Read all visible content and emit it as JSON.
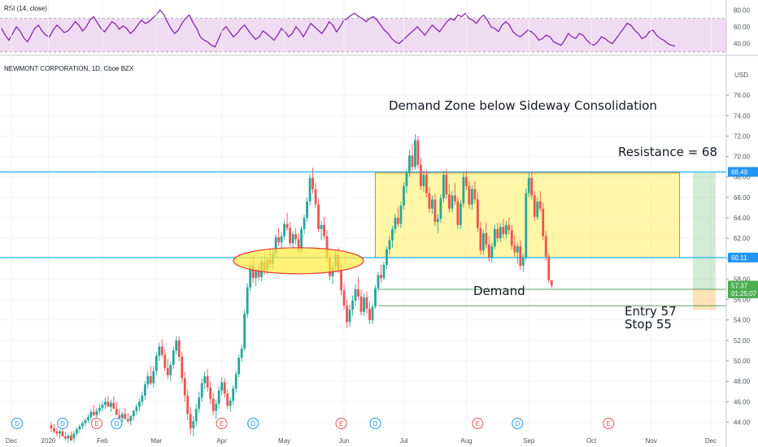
{
  "rsi_panel": {
    "label": "RSI (14, close)",
    "ticks": [
      80,
      60,
      40
    ],
    "tick_labels": [
      "80.00",
      "60.00",
      "40.00"
    ],
    "band": [
      30,
      70
    ],
    "range": [
      28,
      88
    ],
    "values": [
      58,
      50,
      44,
      52,
      60,
      55,
      47,
      42,
      50,
      58,
      62,
      55,
      50,
      48,
      56,
      62,
      58,
      53,
      55,
      60,
      66,
      62,
      55,
      60,
      68,
      72,
      65,
      58,
      54,
      60,
      66,
      63,
      57,
      61,
      58,
      52,
      56,
      62,
      68,
      64,
      66,
      70,
      74,
      80,
      75,
      66,
      58,
      52,
      56,
      64,
      70,
      74,
      65,
      58,
      48,
      44,
      42,
      38,
      36,
      46,
      56,
      60,
      54,
      48,
      52,
      58,
      62,
      56,
      50,
      45,
      48,
      55,
      52,
      48,
      44,
      50,
      58,
      54,
      48,
      52,
      60,
      55,
      48,
      56,
      64,
      60,
      56,
      52,
      58,
      66,
      62,
      54,
      60,
      68,
      70,
      74,
      76,
      72,
      70,
      66,
      70,
      72,
      68,
      62,
      56,
      52,
      46,
      42,
      40,
      44,
      48,
      52,
      56,
      60,
      55,
      50,
      56,
      62,
      58,
      54,
      60,
      66,
      70,
      68,
      74,
      72,
      76,
      70,
      68,
      64,
      70,
      74,
      68,
      60,
      58,
      54,
      62,
      66,
      62,
      54,
      50,
      48,
      52,
      56,
      54,
      50,
      44,
      46,
      50,
      48,
      42,
      40,
      38,
      44,
      52,
      48,
      46,
      52,
      50,
      44,
      40,
      38,
      42,
      48,
      46,
      42,
      40,
      46,
      52,
      58,
      64,
      62,
      56,
      52,
      46,
      48,
      54,
      56,
      50,
      46,
      44,
      40,
      38,
      37
    ]
  },
  "main_chart": {
    "symbol_label": "NEWMONT CORPORATION, 1D, Cboe BZX",
    "currency": "USD",
    "price_ticks": [
      "76.00",
      "74.00",
      "72.00",
      "70.00",
      "68.00",
      "66.00",
      "64.00",
      "62.00",
      "60.00",
      "58.00",
      "56.00",
      "54.00",
      "52.00",
      "50.00",
      "48.00",
      "46.00",
      "44.00"
    ],
    "month_labels": [
      "Dec",
      "2020",
      "Feb",
      "Mar",
      "Apr",
      "May",
      "Jun",
      "Jul",
      "Aug",
      "Sep",
      "Oct",
      "Nov",
      "Dec"
    ],
    "event_markers": [
      {
        "text": "D",
        "date_index": 2,
        "color": "#2196f3"
      },
      {
        "text": "D",
        "date_index": 18,
        "color": "#2196f3"
      },
      {
        "text": "E",
        "date_index": 30,
        "color": "#ef5350"
      },
      {
        "text": "D",
        "date_index": 37,
        "color": "#2196f3"
      },
      {
        "text": "E",
        "date_index": 74,
        "color": "#ef5350"
      },
      {
        "text": "D",
        "date_index": 85,
        "color": "#2196f3"
      },
      {
        "text": "E",
        "date_index": 116,
        "color": "#ef5350"
      },
      {
        "text": "D",
        "date_index": 128,
        "color": "#2196f3"
      },
      {
        "text": "E",
        "date_index": 164,
        "color": "#ef5350"
      },
      {
        "text": "D",
        "date_index": 178,
        "color": "#2196f3"
      },
      {
        "text": "E",
        "date_index": 210,
        "color": "#ef5350"
      }
    ],
    "price_badges": [
      {
        "text": "68.49",
        "price": 68.49,
        "color": "#2196f3"
      },
      {
        "text": "60.11",
        "price": 60.11,
        "color": "#2196f3"
      },
      {
        "text": "57.37",
        "price": 57.37,
        "color": "#4caf50"
      },
      {
        "text": "01:25:07",
        "price": 56.6,
        "color": "#4caf50"
      }
    ]
  },
  "annotations": {
    "title": "Demand Zone below Sideway Consolidation",
    "resistance": "Resistance  = 68",
    "demand": "Demand",
    "entry": "Entry 57",
    "stop": "Stop 55"
  },
  "chart_data": {
    "type": "candlestick",
    "title": "Demand Zone below Sideway Consolidation",
    "y_range": [
      43,
      78
    ],
    "x_range": [
      0,
      250
    ],
    "resistance_line": 68.49,
    "support_line": 60.11,
    "demand_zone": [
      55.4,
      57.0
    ],
    "consolidation_box": {
      "start_index": 128,
      "end_index": 235,
      "top": 68.4,
      "bottom": 60.1
    },
    "target_zone": [
      57.0,
      68.4
    ],
    "stop_zone": [
      55.0,
      57.0
    ],
    "candles": [
      [
        43.7,
        44.0,
        43.0,
        43.4
      ],
      [
        43.4,
        43.8,
        42.9,
        43.1
      ],
      [
        43.1,
        43.5,
        42.6,
        42.9
      ],
      [
        42.9,
        43.3,
        42.4,
        43.1
      ],
      [
        43.1,
        43.6,
        42.7,
        42.6
      ],
      [
        42.6,
        43.0,
        42.2,
        42.4
      ],
      [
        42.4,
        42.8,
        42.0,
        42.7
      ],
      [
        42.7,
        43.1,
        42.3,
        42.2
      ],
      [
        42.4,
        43.2,
        42.0,
        42.9
      ],
      [
        42.9,
        43.5,
        42.6,
        43.3
      ],
      [
        43.3,
        43.8,
        42.9,
        43.6
      ],
      [
        43.6,
        44.1,
        43.3,
        43.9
      ],
      [
        43.9,
        44.4,
        43.6,
        44.2
      ],
      [
        44.2,
        44.8,
        43.9,
        44.5
      ],
      [
        44.5,
        45.3,
        44.2,
        45.0
      ],
      [
        45.0,
        45.7,
        44.6,
        44.7
      ],
      [
        44.7,
        45.4,
        44.3,
        45.1
      ],
      [
        45.1,
        45.8,
        44.8,
        45.4
      ],
      [
        45.4,
        46.0,
        45.0,
        45.7
      ],
      [
        45.7,
        46.4,
        45.3,
        46.0
      ],
      [
        46.0,
        46.6,
        45.6,
        45.5
      ],
      [
        45.5,
        46.2,
        45.0,
        45.9
      ],
      [
        45.9,
        46.5,
        45.5,
        45.3
      ],
      [
        45.3,
        46.0,
        44.9,
        44.7
      ],
      [
        44.7,
        45.3,
        44.3,
        44.4
      ],
      [
        44.4,
        45.0,
        44.0,
        44.8
      ],
      [
        44.8,
        45.4,
        44.4,
        44.3
      ],
      [
        44.3,
        44.9,
        43.9,
        44.1
      ],
      [
        44.1,
        44.7,
        43.7,
        44.6
      ],
      [
        44.6,
        45.2,
        44.2,
        45.1
      ],
      [
        45.1,
        45.8,
        44.7,
        45.5
      ],
      [
        45.5,
        46.3,
        45.1,
        46.0
      ],
      [
        46.0,
        47.0,
        45.6,
        46.6
      ],
      [
        46.6,
        48.0,
        46.2,
        47.7
      ],
      [
        47.7,
        49.0,
        47.3,
        48.5
      ],
      [
        48.5,
        49.5,
        47.6,
        47.8
      ],
      [
        47.8,
        49.5,
        47.4,
        49.0
      ],
      [
        49.0,
        50.8,
        48.6,
        50.5
      ],
      [
        50.5,
        51.8,
        50.0,
        51.4
      ],
      [
        51.4,
        52.1,
        50.3,
        50.6
      ],
      [
        50.6,
        51.2,
        49.0,
        49.3
      ],
      [
        49.3,
        50.2,
        48.2,
        48.6
      ],
      [
        48.6,
        49.9,
        48.0,
        49.6
      ],
      [
        49.6,
        51.4,
        49.2,
        51.0
      ],
      [
        51.0,
        52.4,
        50.6,
        52.0
      ],
      [
        52.0,
        52.4,
        50.0,
        50.4
      ],
      [
        50.4,
        50.9,
        47.8,
        48.3
      ],
      [
        48.3,
        48.9,
        46.0,
        46.6
      ],
      [
        46.6,
        47.2,
        44.2,
        44.8
      ],
      [
        44.8,
        45.5,
        42.8,
        43.4
      ],
      [
        43.4,
        44.6,
        42.6,
        44.1
      ],
      [
        44.1,
        45.8,
        43.6,
        45.3
      ],
      [
        45.3,
        47.0,
        44.9,
        46.4
      ],
      [
        46.4,
        48.3,
        46.0,
        47.8
      ],
      [
        47.8,
        49.0,
        47.2,
        48.5
      ],
      [
        48.5,
        49.2,
        47.0,
        47.4
      ],
      [
        47.4,
        48.0,
        45.8,
        46.3
      ],
      [
        46.3,
        46.9,
        44.7,
        45.1
      ],
      [
        45.1,
        46.2,
        44.3,
        45.8
      ],
      [
        45.8,
        47.5,
        45.3,
        47.1
      ],
      [
        47.1,
        48.4,
        46.6,
        47.9
      ],
      [
        47.9,
        48.3,
        46.4,
        46.8
      ],
      [
        46.8,
        47.2,
        45.3,
        45.6
      ],
      [
        45.6,
        46.4,
        45.0,
        46.1
      ],
      [
        46.1,
        47.6,
        45.7,
        47.3
      ],
      [
        47.3,
        49.0,
        46.9,
        48.7
      ],
      [
        48.7,
        50.6,
        48.4,
        50.3
      ],
      [
        50.3,
        51.6,
        49.9,
        51.2
      ],
      [
        51.2,
        55.0,
        51.0,
        54.6
      ],
      [
        54.6,
        57.6,
        54.2,
        57.2
      ],
      [
        57.2,
        59.7,
        56.8,
        59.3
      ],
      [
        59.3,
        60.3,
        57.6,
        58.1
      ],
      [
        58.1,
        59.2,
        57.3,
        58.8
      ],
      [
        58.8,
        59.6,
        57.9,
        58.2
      ],
      [
        58.2,
        60.1,
        57.8,
        59.7
      ],
      [
        59.7,
        60.6,
        58.4,
        58.9
      ],
      [
        58.9,
        60.2,
        58.5,
        59.9
      ],
      [
        59.9,
        61.0,
        59.1,
        59.5
      ],
      [
        59.5,
        60.9,
        59.0,
        60.5
      ],
      [
        60.5,
        62.4,
        60.1,
        62.1
      ],
      [
        62.1,
        63.0,
        61.2,
        61.6
      ],
      [
        61.6,
        62.6,
        60.9,
        62.2
      ],
      [
        62.2,
        63.7,
        61.8,
        63.4
      ],
      [
        63.4,
        64.5,
        62.7,
        63.0
      ],
      [
        63.0,
        63.6,
        61.2,
        61.5
      ],
      [
        61.5,
        62.7,
        61.0,
        62.4
      ],
      [
        62.4,
        63.0,
        61.4,
        61.9
      ],
      [
        61.9,
        62.5,
        60.6,
        60.8
      ],
      [
        60.8,
        63.2,
        60.5,
        62.9
      ],
      [
        62.9,
        64.3,
        62.4,
        64.0
      ],
      [
        64.0,
        66.0,
        63.6,
        65.6
      ],
      [
        65.6,
        68.3,
        65.2,
        67.9
      ],
      [
        67.9,
        68.9,
        66.4,
        66.8
      ],
      [
        66.8,
        67.4,
        65.0,
        65.3
      ],
      [
        65.3,
        65.9,
        62.6,
        62.9
      ],
      [
        62.9,
        63.7,
        61.8,
        63.3
      ],
      [
        63.3,
        64.1,
        61.9,
        62.2
      ],
      [
        62.2,
        62.8,
        59.7,
        60.1
      ],
      [
        60.1,
        60.6,
        57.9,
        58.3
      ],
      [
        58.3,
        59.7,
        57.5,
        59.2
      ],
      [
        59.2,
        60.8,
        58.8,
        60.4
      ],
      [
        60.4,
        61.1,
        58.6,
        58.9
      ],
      [
        58.9,
        59.5,
        56.4,
        56.9
      ],
      [
        56.9,
        57.6,
        55.0,
        55.4
      ],
      [
        55.4,
        56.0,
        53.2,
        53.8
      ],
      [
        53.8,
        55.5,
        53.3,
        55.0
      ],
      [
        55.0,
        56.4,
        54.4,
        55.9
      ],
      [
        55.9,
        57.5,
        55.4,
        57.0
      ],
      [
        57.0,
        58.2,
        56.0,
        56.3
      ],
      [
        56.3,
        57.0,
        54.4,
        54.8
      ],
      [
        54.8,
        56.6,
        54.4,
        56.2
      ],
      [
        56.2,
        56.8,
        54.6,
        55.1
      ],
      [
        55.1,
        55.8,
        53.6,
        54.0
      ],
      [
        54.0,
        55.6,
        53.6,
        55.3
      ],
      [
        55.3,
        57.4,
        55.1,
        57.1
      ],
      [
        57.1,
        58.7,
        56.8,
        58.4
      ],
      [
        58.4,
        59.4,
        57.6,
        58.1
      ],
      [
        58.1,
        59.7,
        57.9,
        59.4
      ],
      [
        59.4,
        61.2,
        59.0,
        60.9
      ],
      [
        60.9,
        62.2,
        60.4,
        61.8
      ],
      [
        61.8,
        63.2,
        61.1,
        62.9
      ],
      [
        62.9,
        64.4,
        62.5,
        64.0
      ],
      [
        64.0,
        65.0,
        63.1,
        63.4
      ],
      [
        63.4,
        65.6,
        63.0,
        65.2
      ],
      [
        65.2,
        67.5,
        64.8,
        67.1
      ],
      [
        67.1,
        68.8,
        66.4,
        68.4
      ],
      [
        68.4,
        70.6,
        68.0,
        70.1
      ],
      [
        70.1,
        71.2,
        68.6,
        69.0
      ],
      [
        69.0,
        72.2,
        68.7,
        71.6
      ],
      [
        71.6,
        72.0,
        68.8,
        69.2
      ],
      [
        69.2,
        69.9,
        66.7,
        67.1
      ],
      [
        67.1,
        68.6,
        66.5,
        68.2
      ],
      [
        68.2,
        68.7,
        66.0,
        66.4
      ],
      [
        66.4,
        67.0,
        64.5,
        64.9
      ],
      [
        64.9,
        66.2,
        64.4,
        65.8
      ],
      [
        65.8,
        66.4,
        63.2,
        63.6
      ],
      [
        63.6,
        64.4,
        62.5,
        63.9
      ],
      [
        63.9,
        66.3,
        63.5,
        65.9
      ],
      [
        65.9,
        68.6,
        65.5,
        68.2
      ],
      [
        68.2,
        68.8,
        65.9,
        66.3
      ],
      [
        66.3,
        67.3,
        64.5,
        64.9
      ],
      [
        64.9,
        66.6,
        64.5,
        66.2
      ],
      [
        66.2,
        67.4,
        65.3,
        65.6
      ],
      [
        65.6,
        66.0,
        62.9,
        63.3
      ],
      [
        63.3,
        65.7,
        62.9,
        65.4
      ],
      [
        65.4,
        68.5,
        65.0,
        68.0
      ],
      [
        68.0,
        68.6,
        66.7,
        67.1
      ],
      [
        67.1,
        67.6,
        64.9,
        65.3
      ],
      [
        65.3,
        67.2,
        64.8,
        66.8
      ],
      [
        66.8,
        67.6,
        65.4,
        65.8
      ],
      [
        65.8,
        66.5,
        62.6,
        63.0
      ],
      [
        63.0,
        63.6,
        60.4,
        60.8
      ],
      [
        60.8,
        62.8,
        60.4,
        62.5
      ],
      [
        62.5,
        63.5,
        61.0,
        61.4
      ],
      [
        61.4,
        62.2,
        59.7,
        60.1
      ],
      [
        60.1,
        61.6,
        59.6,
        61.2
      ],
      [
        61.2,
        63.3,
        60.9,
        62.9
      ],
      [
        62.9,
        63.5,
        61.6,
        62.0
      ],
      [
        62.0,
        63.5,
        61.6,
        63.1
      ],
      [
        63.1,
        63.9,
        62.0,
        62.4
      ],
      [
        62.4,
        63.7,
        62.0,
        63.3
      ],
      [
        63.3,
        64.0,
        62.4,
        62.8
      ],
      [
        62.8,
        63.3,
        60.9,
        61.3
      ],
      [
        61.3,
        62.3,
        60.2,
        60.6
      ],
      [
        60.6,
        61.6,
        59.5,
        61.2
      ],
      [
        61.2,
        61.8,
        58.9,
        59.3
      ],
      [
        59.3,
        60.5,
        58.7,
        60.1
      ],
      [
        60.1,
        66.9,
        59.8,
        66.4
      ],
      [
        66.4,
        68.4,
        66.0,
        67.9
      ],
      [
        67.9,
        68.5,
        65.8,
        66.2
      ],
      [
        66.2,
        66.6,
        63.7,
        64.1
      ],
      [
        64.1,
        66.0,
        63.8,
        65.6
      ],
      [
        65.6,
        66.6,
        64.6,
        64.9
      ],
      [
        64.9,
        65.5,
        61.8,
        62.2
      ],
      [
        62.2,
        62.7,
        59.8,
        60.2
      ],
      [
        60.2,
        60.5,
        57.6,
        57.9
      ],
      [
        57.9,
        57.6,
        57.1,
        57.37
      ]
    ],
    "x_tick_labels": [
      "Dec",
      "2020",
      "Feb",
      "Mar",
      "Apr",
      "May",
      "Jun",
      "Jul",
      "Aug",
      "Sep",
      "Oct",
      "Nov",
      "Dec"
    ],
    "x_tick_indices": [
      0,
      13,
      32,
      51,
      74,
      96,
      117,
      138,
      160,
      182,
      204,
      225,
      246
    ]
  }
}
